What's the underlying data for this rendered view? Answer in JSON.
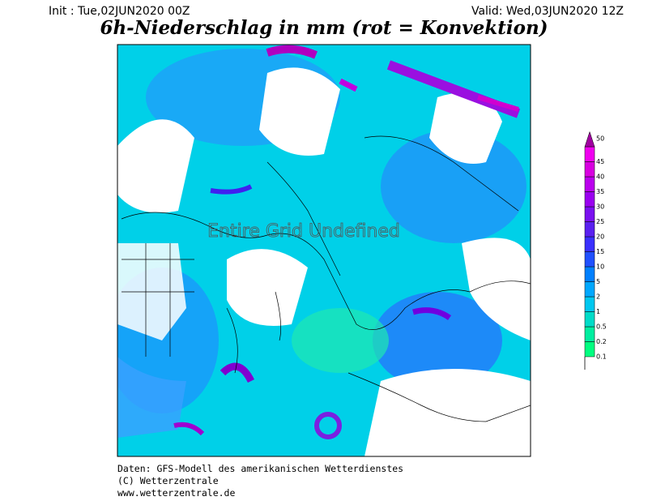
{
  "header": {
    "init": "Init : Tue,02JUN2020 00Z",
    "valid": "Valid: Wed,03JUN2020 12Z",
    "title": "6h-Niederschlag in mm (rot = Konvektion)"
  },
  "map": {
    "overlay": "Entire Grid Undefined"
  },
  "legend": {
    "levels": [
      0.1,
      0.2,
      0.5,
      1,
      2,
      5,
      10,
      15,
      20,
      25,
      30,
      35,
      40,
      45,
      50
    ],
    "colors": [
      "#00ff80",
      "#00eea0",
      "#00dcc8",
      "#00c8f0",
      "#00a8ff",
      "#0080ff",
      "#2050ff",
      "#3a30ff",
      "#5a20f0",
      "#7a10f0",
      "#9a00f0",
      "#bb00ee",
      "#d800e0",
      "#f000f0",
      "#a000a0"
    ]
  },
  "footer": {
    "lines": [
      "Daten: GFS-Modell des amerikanischen Wetterdienstes",
      "(C) Wetterzentrale",
      "www.wetterzentrale.de"
    ]
  }
}
